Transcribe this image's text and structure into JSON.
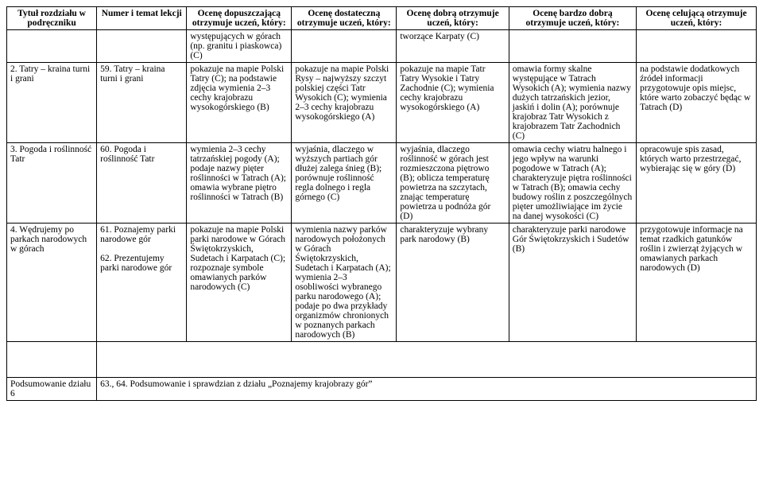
{
  "headers": [
    "Tytuł rozdziału w podręczniku",
    "Numer i temat lekcji",
    "Ocenę dopuszczającą otrzymuje uczeń, który:",
    "Ocenę dostateczną otrzymuje uczeń, który:",
    "Ocenę dobrą otrzymuje uczeń, który:",
    "Ocenę bardzo dobrą otrzymuje uczeń, który:",
    "Ocenę celującą otrzymuje uczeń, który:"
  ],
  "rows": [
    {
      "c0": "",
      "c1": "",
      "c2": "występujących w górach (np. granitu i piaskowca) (C)",
      "c3": "",
      "c4": "tworzące Karpaty (C)",
      "c5": "",
      "c6": ""
    },
    {
      "c0": "2. Tatry – kraina turni i grani",
      "c1": "59. Tatry – kraina turni i grani",
      "c2": "pokazuje na mapie Polski Tatry (C); na podstawie zdjęcia wymienia 2–3 cechy krajobrazu wysokogórskiego (B)",
      "c3": "pokazuje na mapie Polski Rysy – najwyższy szczyt polskiej części Tatr Wysokich (C); wymienia 2–3 cechy krajobrazu wysokogórskiego (A)",
      "c4": "pokazuje na mapie Tatr Tatry Wysokie i Tatry Zachodnie (C); wymienia cechy krajobrazu wysokogórskiego (A)",
      "c5": "omawia formy skalne występujące w Tatrach Wysokich (A); wymienia nazwy dużych tatrzańskich jezior, jaskiń i dolin (A); porównuje krajobraz Tatr Wysokich z krajobrazem Tatr Zachodnich (C)",
      "c6": "na podstawie dodatkowych źródeł informacji przygotowuje opis miejsc, które warto zobaczyć będąc w Tatrach (D)"
    },
    {
      "c0": "3. Pogoda i roślinność Tatr",
      "c1": "60. Pogoda i roślinność Tatr",
      "c2": "wymienia 2–3 cechy tatrzańskiej pogody (A); podaje nazwy pięter roślinności w Tatrach (A); omawia wybrane piętro roślinności w Tatrach (B)",
      "c3": "wyjaśnia, dlaczego w wyższych partiach gór dłużej zalega śnieg (B); porównuje roślinność regla dolnego i regla górnego (C)",
      "c4": "wyjaśnia, dlaczego roślinność w górach jest rozmieszczona piętrowo (B); oblicza temperaturę powietrza na szczytach, znając temperaturę powietrza u podnóża gór (D)",
      "c5": "omawia cechy wiatru halnego i jego wpływ na warunki pogodowe w Tatrach (A); charakteryzuje piętra roślinności w Tatrach (B); omawia cechy budowy roślin z poszczególnych pięter umożliwiające im życie na danej wysokości (C)",
      "c6": "opracowuje spis zasad, których warto przestrzegać, wybierając się w góry (D)"
    },
    {
      "c0": "4. Wędrujemy po parkach narodowych w górach",
      "c1": "61. Poznajemy parki narodowe gór\n\n62. Prezentujemy parki narodowe gór",
      "c2": "pokazuje na mapie Polski parki narodowe w Górach Świętokrzyskich, Sudetach i Karpatach (C); rozpoznaje symbole omawianych parków narodowych (C)",
      "c3": "wymienia nazwy parków narodowych położonych w Górach Świętokrzyskich, Sudetach i Karpatach (A); wymienia 2–3 osobliwości wybranego parku narodowego (A); podaje po dwa przykłady organizmów chronionych w poznanych parkach narodowych (B)",
      "c4": "charakteryzuje wybrany park narodowy (B)",
      "c5": "charakteryzuje parki narodowe Gór Świętokrzyskich i Sudetów (B)",
      "c6": "przygotowuje informacje na temat rzadkich gatunków roślin i zwierząt żyjących w omawianych parkach narodowych (D)"
    }
  ],
  "footer": {
    "c0": "Podsumowanie działu 6",
    "c1": "63., 64. Podsumowanie i sprawdzian z działu „Poznajemy krajobrazy gór”"
  }
}
